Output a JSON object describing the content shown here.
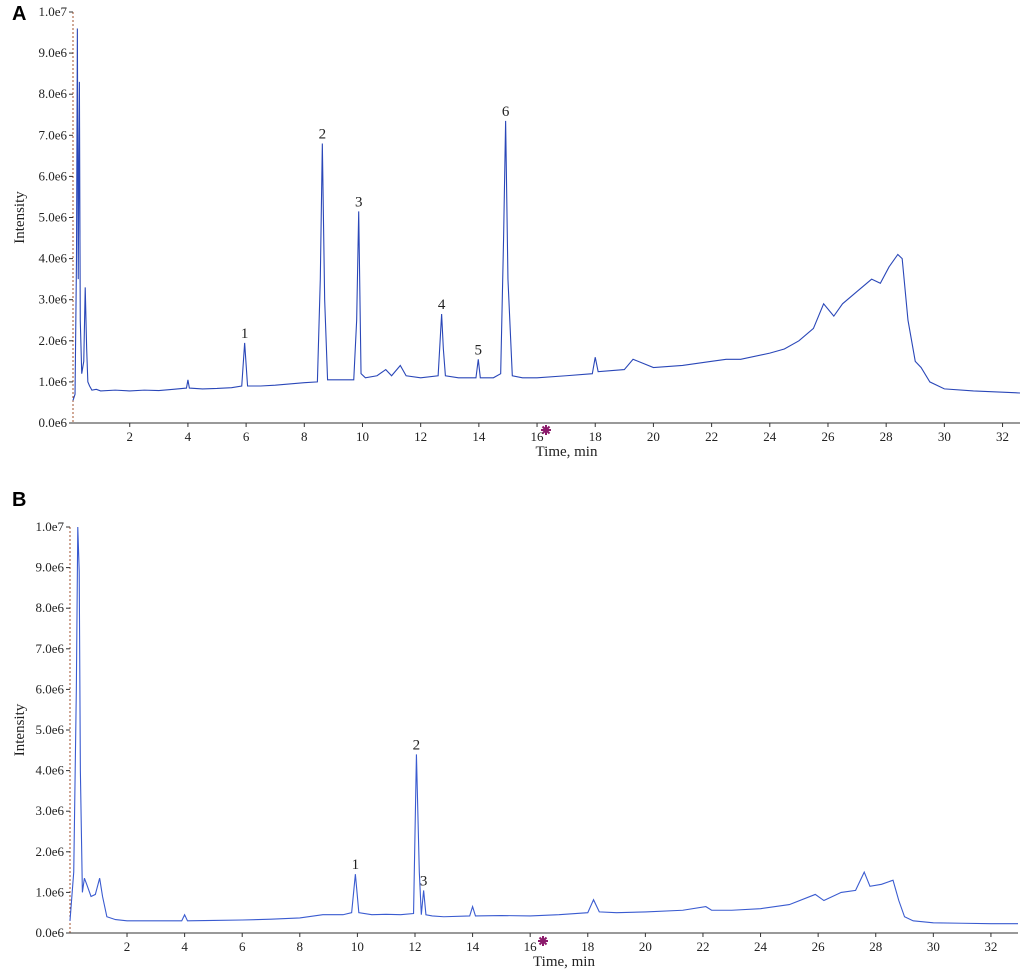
{
  "chart_data": [
    {
      "type": "line",
      "panel": "A",
      "xlabel": "Time, min",
      "ylabel": "Intensity",
      "color": "#2a47b8",
      "xlim": [
        0.05,
        32.6
      ],
      "ylim": [
        0,
        10000000
      ],
      "xticks": [
        2,
        4,
        6,
        8,
        10,
        12,
        14,
        16,
        18,
        20,
        22,
        24,
        26,
        28,
        30,
        32
      ],
      "yticks": [
        {
          "value": 0,
          "label": "0.0e6"
        },
        {
          "value": 1000000,
          "label": "1.0e6"
        },
        {
          "value": 2000000,
          "label": "2.0e6"
        },
        {
          "value": 3000000,
          "label": "3.0e6"
        },
        {
          "value": 4000000,
          "label": "4.0e6"
        },
        {
          "value": 5000000,
          "label": "5.0e6"
        },
        {
          "value": 6000000,
          "label": "6.0e6"
        },
        {
          "value": 7000000,
          "label": "7.0e6"
        },
        {
          "value": 8000000,
          "label": "8.0e6"
        },
        {
          "value": 9000000,
          "label": "9.0e6"
        },
        {
          "value": 10000000,
          "label": "1.0e7"
        }
      ],
      "x": [
        0.05,
        0.12,
        0.17,
        0.2,
        0.23,
        0.27,
        0.3,
        0.35,
        0.42,
        0.47,
        0.52,
        0.56,
        0.62,
        0.7,
        0.85,
        1.0,
        1.5,
        2.0,
        2.5,
        3.0,
        3.5,
        3.95,
        4.0,
        4.05,
        4.5,
        5.0,
        5.5,
        5.85,
        5.95,
        6.05,
        6.5,
        7.0,
        7.5,
        8.0,
        8.45,
        8.55,
        8.62,
        8.7,
        8.8,
        9.2,
        9.7,
        9.8,
        9.87,
        9.95,
        10.1,
        10.5,
        10.8,
        11.0,
        11.3,
        11.5,
        12.0,
        12.6,
        12.72,
        12.78,
        12.85,
        13.3,
        13.9,
        13.98,
        14.05,
        14.5,
        14.75,
        14.85,
        14.92,
        15.0,
        15.15,
        15.5,
        16.0,
        17.0,
        17.9,
        18.0,
        18.1,
        19.0,
        19.3,
        20.0,
        21.0,
        22.0,
        22.5,
        23.0,
        24.0,
        24.5,
        25.0,
        25.5,
        25.85,
        26.2,
        26.5,
        27.0,
        27.5,
        27.8,
        28.1,
        28.4,
        28.55,
        28.75,
        29.0,
        29.2,
        29.5,
        30.0,
        31.0,
        32.0,
        32.6
      ],
      "values": [
        550000,
        700000,
        4000000,
        9600000,
        3500000,
        8300000,
        2500000,
        1200000,
        1500000,
        3300000,
        1800000,
        1000000,
        900000,
        800000,
        820000,
        780000,
        800000,
        780000,
        800000,
        790000,
        820000,
        850000,
        1050000,
        850000,
        830000,
        840000,
        860000,
        900000,
        1950000,
        900000,
        900000,
        920000,
        950000,
        980000,
        1000000,
        3500000,
        6800000,
        3000000,
        1050000,
        1050000,
        1050000,
        2500000,
        5150000,
        1200000,
        1100000,
        1150000,
        1300000,
        1150000,
        1400000,
        1150000,
        1100000,
        1150000,
        2650000,
        1800000,
        1150000,
        1100000,
        1100000,
        1550000,
        1100000,
        1100000,
        1200000,
        4500000,
        7350000,
        3500000,
        1150000,
        1100000,
        1100000,
        1150000,
        1200000,
        1600000,
        1250000,
        1300000,
        1550000,
        1350000,
        1400000,
        1500000,
        1550000,
        1550000,
        1700000,
        1800000,
        2000000,
        2300000,
        2900000,
        2600000,
        2900000,
        3200000,
        3500000,
        3400000,
        3800000,
        4100000,
        4000000,
        2500000,
        1500000,
        1350000,
        1000000,
        830000,
        780000,
        750000,
        730000
      ],
      "annotations": [
        {
          "text": "1",
          "x": 5.95,
          "y": 1950000
        },
        {
          "text": "2",
          "x": 8.62,
          "y": 6800000
        },
        {
          "text": "3",
          "x": 9.87,
          "y": 5150000
        },
        {
          "text": "4",
          "x": 12.72,
          "y": 2650000
        },
        {
          "text": "5",
          "x": 13.98,
          "y": 1550000
        },
        {
          "text": "6",
          "x": 14.92,
          "y": 7350000
        }
      ]
    },
    {
      "type": "line",
      "panel": "B",
      "xlabel": "Time, min",
      "ylabel": "Intensity",
      "color": "#3a5bd0",
      "xlim": [
        0.02,
        32.94
      ],
      "ylim": [
        0,
        10000000
      ],
      "xticks": [
        2,
        4,
        6,
        8,
        10,
        12,
        14,
        16,
        18,
        20,
        22,
        24,
        26,
        28,
        30,
        32
      ],
      "yticks": [
        {
          "value": 0,
          "label": "0.0e6"
        },
        {
          "value": 1000000,
          "label": "1.0e6"
        },
        {
          "value": 2000000,
          "label": "2.0e6"
        },
        {
          "value": 3000000,
          "label": "3.0e6"
        },
        {
          "value": 4000000,
          "label": "4.0e6"
        },
        {
          "value": 5000000,
          "label": "5.0e6"
        },
        {
          "value": 6000000,
          "label": "6.0e6"
        },
        {
          "value": 7000000,
          "label": "7.0e6"
        },
        {
          "value": 8000000,
          "label": "8.0e6"
        },
        {
          "value": 9000000,
          "label": "9.0e6"
        },
        {
          "value": 10000000,
          "label": "1.0e7"
        }
      ],
      "x": [
        0.02,
        0.15,
        0.24,
        0.29,
        0.34,
        0.38,
        0.45,
        0.52,
        0.6,
        0.75,
        0.9,
        1.05,
        1.15,
        1.3,
        1.6,
        2.0,
        3.0,
        3.9,
        4.0,
        4.1,
        5.0,
        6.0,
        7.0,
        8.0,
        8.8,
        9.5,
        9.8,
        9.93,
        10.05,
        10.5,
        11.0,
        11.5,
        11.95,
        12.05,
        12.15,
        12.22,
        12.3,
        12.38,
        12.6,
        13.0,
        13.9,
        14.0,
        14.1,
        15.0,
        16.0,
        17.0,
        18.0,
        18.2,
        18.4,
        19.0,
        20.0,
        21.3,
        22.1,
        22.3,
        23.0,
        24.0,
        25.0,
        25.9,
        26.2,
        26.8,
        27.3,
        27.6,
        27.8,
        28.2,
        28.6,
        28.8,
        29.0,
        29.3,
        30.0,
        31.0,
        32.0,
        32.94
      ],
      "values": [
        300000,
        1500000,
        6000000,
        10000000,
        8900000,
        4000000,
        1000000,
        1350000,
        1200000,
        900000,
        950000,
        1350000,
        900000,
        400000,
        330000,
        300000,
        300000,
        300000,
        450000,
        300000,
        310000,
        320000,
        340000,
        370000,
        450000,
        450000,
        500000,
        1450000,
        500000,
        450000,
        460000,
        450000,
        480000,
        4400000,
        1500000,
        450000,
        1050000,
        450000,
        420000,
        400000,
        420000,
        650000,
        420000,
        430000,
        420000,
        450000,
        500000,
        820000,
        520000,
        500000,
        520000,
        560000,
        650000,
        560000,
        560000,
        600000,
        700000,
        950000,
        800000,
        1000000,
        1050000,
        1500000,
        1150000,
        1200000,
        1300000,
        800000,
        400000,
        300000,
        250000,
        240000,
        230000,
        230000
      ],
      "annotations": [
        {
          "text": "1",
          "x": 9.93,
          "y": 1450000
        },
        {
          "text": "2",
          "x": 12.05,
          "y": 4400000
        },
        {
          "text": "3",
          "x": 12.3,
          "y": 1050000
        }
      ]
    }
  ]
}
